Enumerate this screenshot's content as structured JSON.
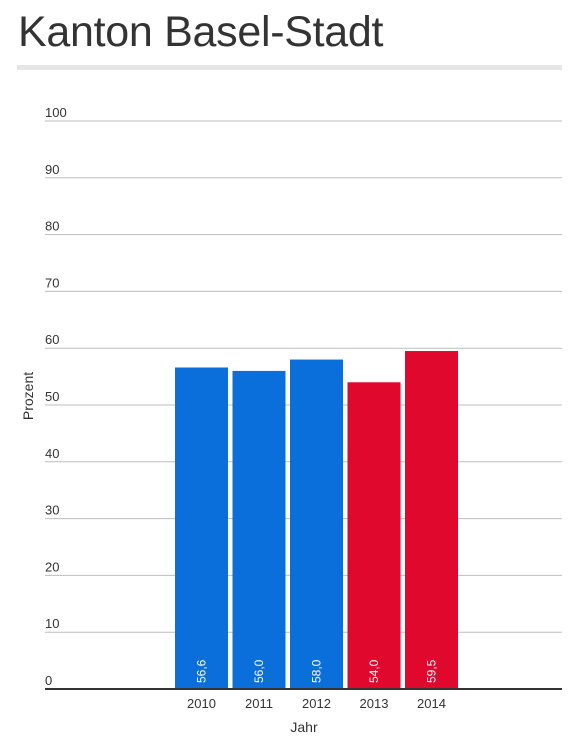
{
  "title": "Kanton Basel-Stadt",
  "chart_data": {
    "type": "bar",
    "categories": [
      "2010",
      "2011",
      "2012",
      "2013",
      "2014"
    ],
    "values": [
      56.6,
      56.0,
      58.0,
      54.0,
      59.5
    ],
    "value_labels": [
      "56,6",
      "56,0",
      "58,0",
      "54,0",
      "59,5"
    ],
    "bar_colors": [
      "#0a6fdb",
      "#0a6fdb",
      "#0a6fdb",
      "#e0082d",
      "#e0082d"
    ],
    "xlabel": "Jahr",
    "ylabel": "Prozent",
    "ylim": [
      0,
      100
    ],
    "yticks": [
      0,
      10,
      20,
      30,
      40,
      50,
      60,
      70,
      80,
      90,
      100
    ],
    "grid": true,
    "gridline_color": "#bdbdbd"
  }
}
